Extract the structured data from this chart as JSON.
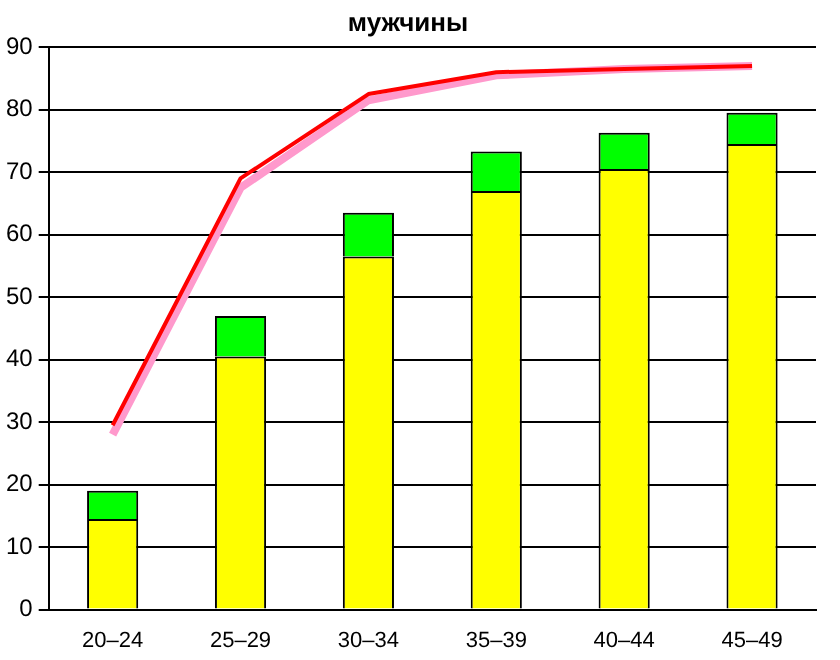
{
  "chart_data": {
    "type": "bar",
    "title": "мужчины",
    "stacked": true,
    "categories": [
      "20–24",
      "25–29",
      "30–34",
      "35–39",
      "40–44",
      "45–49"
    ],
    "series": [
      {
        "color": "#ffff00",
        "values": [
          14.5,
          40.5,
          56.5,
          67,
          70.5,
          74.5
        ]
      },
      {
        "color": "#00ff00",
        "values": [
          4.5,
          6.5,
          7,
          6.3,
          5.8,
          5
        ]
      },
      {
        "type": "line",
        "color": "#ff99cc",
        "values": [
          28,
          67.5,
          81.5,
          85.5,
          86.5,
          87
        ]
      },
      {
        "type": "line",
        "color": "#ff0000",
        "values": [
          29.5,
          69,
          82.5,
          86,
          86.5,
          87
        ]
      }
    ],
    "ylim": [
      0,
      90
    ],
    "yticks": [
      0,
      10,
      20,
      30,
      40,
      50,
      60,
      70,
      80,
      90
    ],
    "grid": "y",
    "legend": false,
    "marker": "none"
  }
}
